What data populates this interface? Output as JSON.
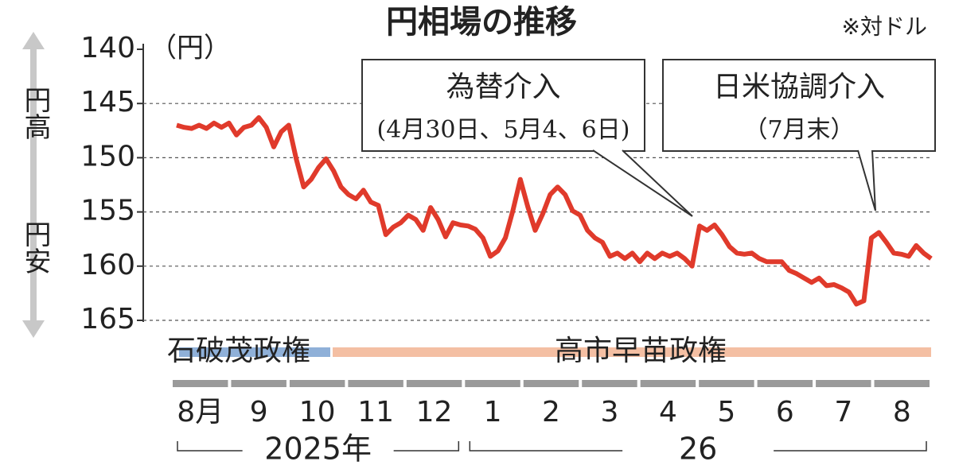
{
  "chart_data": {
    "type": "line",
    "title": "円相場の推移",
    "note": "※対ドル",
    "unit_label": "（円）",
    "y_side_labels": [
      "円高",
      "円安"
    ],
    "ylim": [
      140,
      165
    ],
    "yticks": [
      140,
      145,
      150,
      155,
      160,
      165
    ],
    "y_inverted": true,
    "grid": true,
    "months": [
      "8月",
      "9",
      "10",
      "11",
      "12",
      "1",
      "2",
      "3",
      "4",
      "5",
      "6",
      "7",
      "8"
    ],
    "years": [
      "2025年",
      "26"
    ],
    "regimes": [
      {
        "name": "石破茂政権",
        "color": "#8fb0d8"
      },
      {
        "name": "高市早苗政権",
        "color": "#f4bfa3"
      }
    ],
    "series": [
      {
        "color": "#e03a2b",
        "values": [
          147.0,
          147.2,
          147.3,
          147.0,
          147.3,
          146.8,
          147.2,
          146.8,
          147.9,
          147.2,
          147.0,
          146.3,
          147.2,
          149.0,
          147.6,
          147.0,
          150.1,
          152.7,
          152.0,
          150.9,
          150.1,
          151.2,
          152.7,
          153.4,
          153.8,
          153.0,
          154.1,
          154.4,
          157.1,
          156.4,
          156.0,
          155.3,
          155.7,
          156.7,
          154.6,
          155.7,
          157.3,
          156.0,
          156.2,
          156.3,
          156.6,
          157.4,
          159.1,
          158.6,
          157.4,
          154.9,
          152.0,
          154.5,
          156.7,
          155.2,
          153.4,
          152.7,
          153.4,
          154.9,
          155.3,
          156.7,
          157.4,
          157.8,
          159.1,
          158.8,
          159.3,
          158.8,
          159.6,
          158.8,
          159.3,
          158.8,
          159.1,
          158.8,
          159.3,
          160.0,
          156.3,
          156.7,
          156.2,
          157.1,
          158.2,
          158.8,
          158.9,
          158.8,
          159.3,
          159.6,
          159.6,
          159.6,
          160.4,
          160.7,
          161.1,
          161.5,
          161.1,
          161.8,
          161.7,
          162.0,
          162.4,
          163.5,
          163.2,
          157.4,
          156.9,
          157.8,
          158.8,
          158.9,
          159.1,
          158.1,
          158.8,
          159.3
        ]
      }
    ],
    "annotations": [
      {
        "lines": [
          "為替介入",
          "(4月30日、5月4、6日)"
        ]
      },
      {
        "lines": [
          "日米協調介入",
          "（7月末）"
        ]
      }
    ]
  }
}
